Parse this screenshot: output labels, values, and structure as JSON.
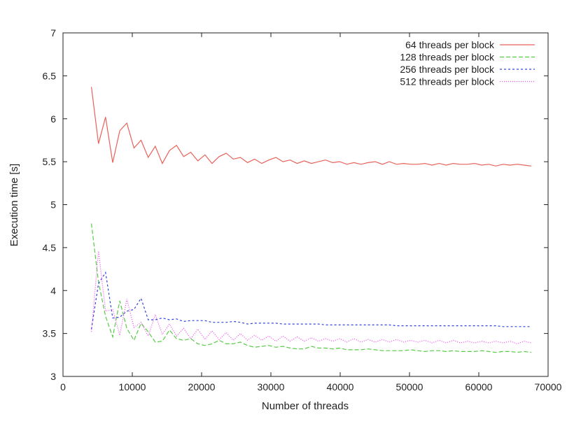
{
  "chart_data": {
    "type": "line",
    "title": "",
    "xlabel": "Number of threads",
    "ylabel": "Execution time [s]",
    "xlim": [
      0,
      70000
    ],
    "ylim": [
      3,
      7
    ],
    "xticks": [
      0,
      10000,
      20000,
      30000,
      40000,
      50000,
      60000,
      70000
    ],
    "yticks": [
      3,
      3.5,
      4,
      4.5,
      5,
      5.5,
      6,
      6.5,
      7
    ],
    "xtick_labels": [
      "0",
      "10000",
      "20000",
      "30000",
      "40000",
      "50000",
      "60000",
      "70000"
    ],
    "ytick_labels": [
      "3",
      "3.5",
      "4",
      "4.5",
      "5",
      "5.5",
      "6",
      "6.5",
      "7"
    ],
    "grid": false,
    "legend_position": "top-right",
    "series": [
      {
        "name": "64 threads per block",
        "color": "#e8625a",
        "dash": "solid",
        "x": [
          4096,
          5120,
          6144,
          7168,
          8192,
          9216,
          10240,
          11264,
          12288,
          13312,
          14336,
          15360,
          16384,
          17408,
          18432,
          19456,
          20480,
          21504,
          22528,
          23552,
          24576,
          25600,
          26624,
          27648,
          28672,
          29696,
          30720,
          31744,
          32768,
          33792,
          34816,
          35840,
          36864,
          37888,
          38912,
          39936,
          40960,
          41984,
          43008,
          44032,
          45056,
          46080,
          47104,
          48128,
          49152,
          50176,
          51200,
          52224,
          53248,
          54272,
          55296,
          56320,
          57344,
          58368,
          59392,
          60416,
          61440,
          62464,
          63488,
          64512,
          65536,
          66560,
          67584
        ],
        "y": [
          6.37,
          5.71,
          6.02,
          5.49,
          5.86,
          5.95,
          5.66,
          5.75,
          5.55,
          5.68,
          5.48,
          5.63,
          5.69,
          5.56,
          5.61,
          5.51,
          5.58,
          5.48,
          5.56,
          5.6,
          5.53,
          5.55,
          5.49,
          5.53,
          5.48,
          5.52,
          5.55,
          5.5,
          5.52,
          5.48,
          5.51,
          5.48,
          5.5,
          5.52,
          5.49,
          5.5,
          5.47,
          5.49,
          5.47,
          5.49,
          5.5,
          5.47,
          5.5,
          5.47,
          5.48,
          5.47,
          5.47,
          5.48,
          5.46,
          5.48,
          5.46,
          5.48,
          5.47,
          5.47,
          5.48,
          5.46,
          5.47,
          5.45,
          5.47,
          5.46,
          5.47,
          5.46,
          5.45
        ]
      },
      {
        "name": "128 threads per block",
        "color": "#55cc44",
        "dash": "6,3",
        "x": [
          4096,
          5120,
          6144,
          7168,
          8192,
          9216,
          10240,
          11264,
          12288,
          13312,
          14336,
          15360,
          16384,
          17408,
          18432,
          19456,
          20480,
          21504,
          22528,
          23552,
          24576,
          25600,
          26624,
          27648,
          28672,
          29696,
          30720,
          31744,
          32768,
          33792,
          34816,
          35840,
          36864,
          37888,
          38912,
          39936,
          40960,
          41984,
          43008,
          44032,
          45056,
          46080,
          47104,
          48128,
          49152,
          50176,
          51200,
          52224,
          53248,
          54272,
          55296,
          56320,
          57344,
          58368,
          59392,
          60416,
          61440,
          62464,
          63488,
          64512,
          65536,
          66560,
          67584
        ],
        "y": [
          4.78,
          4.1,
          3.7,
          3.46,
          3.88,
          3.56,
          3.42,
          3.62,
          3.52,
          3.4,
          3.41,
          3.54,
          3.44,
          3.42,
          3.44,
          3.38,
          3.36,
          3.38,
          3.42,
          3.38,
          3.38,
          3.4,
          3.36,
          3.34,
          3.35,
          3.36,
          3.34,
          3.35,
          3.33,
          3.32,
          3.32,
          3.35,
          3.33,
          3.33,
          3.32,
          3.33,
          3.31,
          3.31,
          3.31,
          3.32,
          3.31,
          3.3,
          3.3,
          3.3,
          3.3,
          3.31,
          3.3,
          3.29,
          3.3,
          3.3,
          3.29,
          3.3,
          3.29,
          3.29,
          3.29,
          3.3,
          3.29,
          3.28,
          3.29,
          3.29,
          3.28,
          3.29,
          3.28
        ]
      },
      {
        "name": "256 threads per block",
        "color": "#3344dd",
        "dash": "3,3",
        "x": [
          4096,
          5120,
          6144,
          7168,
          8192,
          9216,
          10240,
          11264,
          12288,
          13312,
          14336,
          15360,
          16384,
          17408,
          18432,
          19456,
          20480,
          21504,
          22528,
          23552,
          24576,
          25600,
          26624,
          27648,
          28672,
          29696,
          30720,
          31744,
          32768,
          33792,
          34816,
          35840,
          36864,
          37888,
          38912,
          39936,
          40960,
          41984,
          43008,
          44032,
          45056,
          46080,
          47104,
          48128,
          49152,
          50176,
          51200,
          52224,
          53248,
          54272,
          55296,
          56320,
          57344,
          58368,
          59392,
          60416,
          61440,
          62464,
          63488,
          64512,
          65536,
          66560,
          67584
        ],
        "y": [
          3.55,
          4.08,
          4.21,
          3.68,
          3.69,
          3.76,
          3.78,
          3.91,
          3.66,
          3.66,
          3.68,
          3.66,
          3.67,
          3.64,
          3.65,
          3.65,
          3.65,
          3.63,
          3.63,
          3.63,
          3.64,
          3.63,
          3.61,
          3.62,
          3.62,
          3.62,
          3.62,
          3.61,
          3.61,
          3.61,
          3.61,
          3.61,
          3.61,
          3.6,
          3.6,
          3.6,
          3.6,
          3.6,
          3.6,
          3.6,
          3.6,
          3.6,
          3.6,
          3.59,
          3.59,
          3.59,
          3.59,
          3.59,
          3.59,
          3.59,
          3.59,
          3.59,
          3.59,
          3.59,
          3.59,
          3.59,
          3.59,
          3.59,
          3.58,
          3.58,
          3.58,
          3.58,
          3.58
        ]
      },
      {
        "name": "512 threads per block",
        "color": "#ee44ee",
        "dash": "1,2",
        "x": [
          4096,
          5120,
          6144,
          7168,
          8192,
          9216,
          10240,
          11264,
          12288,
          13312,
          14336,
          15360,
          16384,
          17408,
          18432,
          19456,
          20480,
          21504,
          22528,
          23552,
          24576,
          25600,
          26624,
          27648,
          28672,
          29696,
          30720,
          31744,
          32768,
          33792,
          34816,
          35840,
          36864,
          37888,
          38912,
          39936,
          40960,
          41984,
          43008,
          44032,
          45056,
          46080,
          47104,
          48128,
          49152,
          50176,
          51200,
          52224,
          53248,
          54272,
          55296,
          56320,
          57344,
          58368,
          59392,
          60416,
          61440,
          62464,
          63488,
          64512,
          65536,
          66560,
          67584
        ],
        "y": [
          3.52,
          4.46,
          3.76,
          3.78,
          3.48,
          3.9,
          3.57,
          3.63,
          3.47,
          3.72,
          3.49,
          3.61,
          3.47,
          3.56,
          3.44,
          3.55,
          3.43,
          3.53,
          3.43,
          3.51,
          3.42,
          3.5,
          3.42,
          3.48,
          3.42,
          3.47,
          3.41,
          3.47,
          3.41,
          3.46,
          3.41,
          3.45,
          3.41,
          3.44,
          3.41,
          3.44,
          3.4,
          3.44,
          3.4,
          3.43,
          3.4,
          3.43,
          3.4,
          3.43,
          3.4,
          3.42,
          3.4,
          3.42,
          3.39,
          3.42,
          3.39,
          3.42,
          3.39,
          3.41,
          3.39,
          3.41,
          3.39,
          3.41,
          3.39,
          3.41,
          3.38,
          3.41,
          3.39
        ]
      }
    ]
  }
}
